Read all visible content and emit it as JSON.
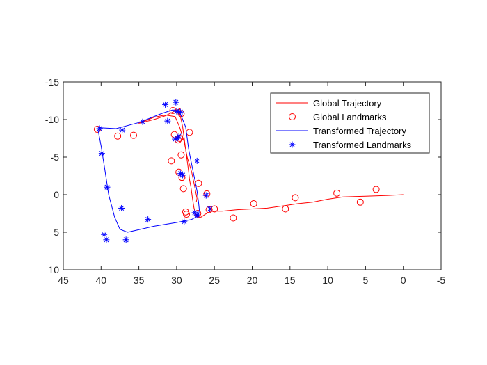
{
  "chart_data": {
    "type": "line",
    "title": "",
    "xlabel": "",
    "ylabel": "",
    "xlim": [
      -5,
      45
    ],
    "ylim": [
      -15,
      10
    ],
    "x_reversed": true,
    "y_reversed": true,
    "grid": false,
    "legend_position": "top-right",
    "x_ticks": [
      45,
      40,
      35,
      30,
      25,
      20,
      15,
      10,
      5,
      0,
      -5
    ],
    "y_ticks": [
      -15,
      -10,
      -5,
      0,
      5,
      10
    ],
    "series": [
      {
        "name": "Global Trajectory",
        "kind": "line",
        "color": "#ff0000",
        "x": [
          0,
          2,
          5,
          8,
          10,
          12,
          14,
          16,
          18,
          20,
          22,
          24,
          25.5,
          26.2,
          26.8,
          27.2,
          27.5,
          27.7,
          27.9,
          28.1,
          28.3,
          28.4,
          28.6,
          28.8,
          29.0,
          29.2,
          29.4,
          29.6,
          29.8,
          29.5,
          30.5,
          31.5,
          33,
          35,
          33,
          31.5,
          30.2,
          29.6,
          29.0,
          28.6,
          28.0,
          27.6,
          27.3,
          27.4
        ],
        "y": [
          0,
          0.1,
          0.2,
          0.3,
          0.6,
          1.0,
          1.2,
          1.5,
          1.8,
          1.9,
          2.0,
          2.2,
          2.2,
          2.6,
          3.0,
          3.0,
          2.6,
          1.8,
          0.5,
          -1.0,
          -2.0,
          -3.0,
          -4.5,
          -6.0,
          -7.5,
          -9.0,
          -10.0,
          -10.8,
          -11.0,
          -11.5,
          -11.0,
          -10.5,
          -10.0,
          -9.5,
          -10.3,
          -10.6,
          -10.4,
          -9.0,
          -7.0,
          -5.0,
          -3.0,
          -1.0,
          0.5,
          1.0
        ]
      },
      {
        "name": "Global Landmarks",
        "kind": "scatter",
        "marker": "circle",
        "color": "#ff0000",
        "x": [
          40.5,
          37.8,
          35.7,
          30.5,
          30.3,
          29.8,
          29.6,
          28.3,
          29.4,
          29.4,
          30.7,
          29.7,
          29.3,
          29.1,
          27.1,
          26.0,
          28.8,
          28.7,
          27.2,
          25.7,
          25.0,
          22.5,
          19.8,
          15.6,
          14.3,
          8.8,
          5.7,
          3.6
        ],
        "y": [
          -8.7,
          -7.8,
          -7.9,
          -11.2,
          -8.0,
          -7.3,
          -7.5,
          -8.3,
          -10.8,
          -5.3,
          -4.5,
          -3.0,
          -2.3,
          -0.8,
          -1.5,
          -0.1,
          2.3,
          2.6,
          2.5,
          2.0,
          1.9,
          3.1,
          1.2,
          1.9,
          0.4,
          -0.2,
          1.0,
          -0.7
        ]
      },
      {
        "name": "Transformed Trajectory",
        "kind": "line",
        "color": "#0000ff",
        "x": [
          40.0,
          38.0,
          35.0,
          32.0,
          30.5,
          29.6,
          29.2,
          28.8,
          28.6,
          28.4,
          28.0,
          27.6,
          27.3,
          27.1,
          27.0,
          27.1,
          28.0,
          30.0,
          33.0,
          36.5,
          37.5,
          38.2,
          39.0,
          39.6,
          40.0,
          40.4,
          40.2,
          40.0
        ],
        "y": [
          -8.9,
          -8.8,
          -9.6,
          -10.8,
          -11.3,
          -11.0,
          -10.0,
          -9.0,
          -7.5,
          -6.0,
          -4.0,
          -2.0,
          -0.5,
          1.0,
          2.0,
          2.8,
          3.3,
          3.7,
          4.2,
          5.0,
          4.6,
          3.0,
          0.0,
          -4.0,
          -6.5,
          -8.6,
          -9.0,
          -8.9
        ]
      },
      {
        "name": "Transformed Landmarks",
        "kind": "scatter",
        "marker": "asterisk",
        "color": "#0000ff",
        "x": [
          40.2,
          37.2,
          34.5,
          31.5,
          30.1,
          30.0,
          29.5,
          29.9,
          29.7,
          31.2,
          30.2,
          39.9,
          39.2,
          29.5,
          29.2,
          27.3,
          26.1,
          27.6,
          27.3,
          25.6,
          29.0,
          33.8,
          37.3,
          39.6,
          39.3,
          36.7
        ],
        "y": [
          -8.8,
          -8.6,
          -9.7,
          -12.0,
          -12.3,
          -11.1,
          -11.0,
          -7.5,
          -7.8,
          -9.8,
          -7.4,
          -5.5,
          -1.0,
          -2.8,
          -2.6,
          -4.5,
          0.1,
          2.4,
          2.7,
          1.9,
          3.6,
          3.3,
          1.8,
          5.3,
          6.0,
          6.0
        ]
      }
    ]
  }
}
